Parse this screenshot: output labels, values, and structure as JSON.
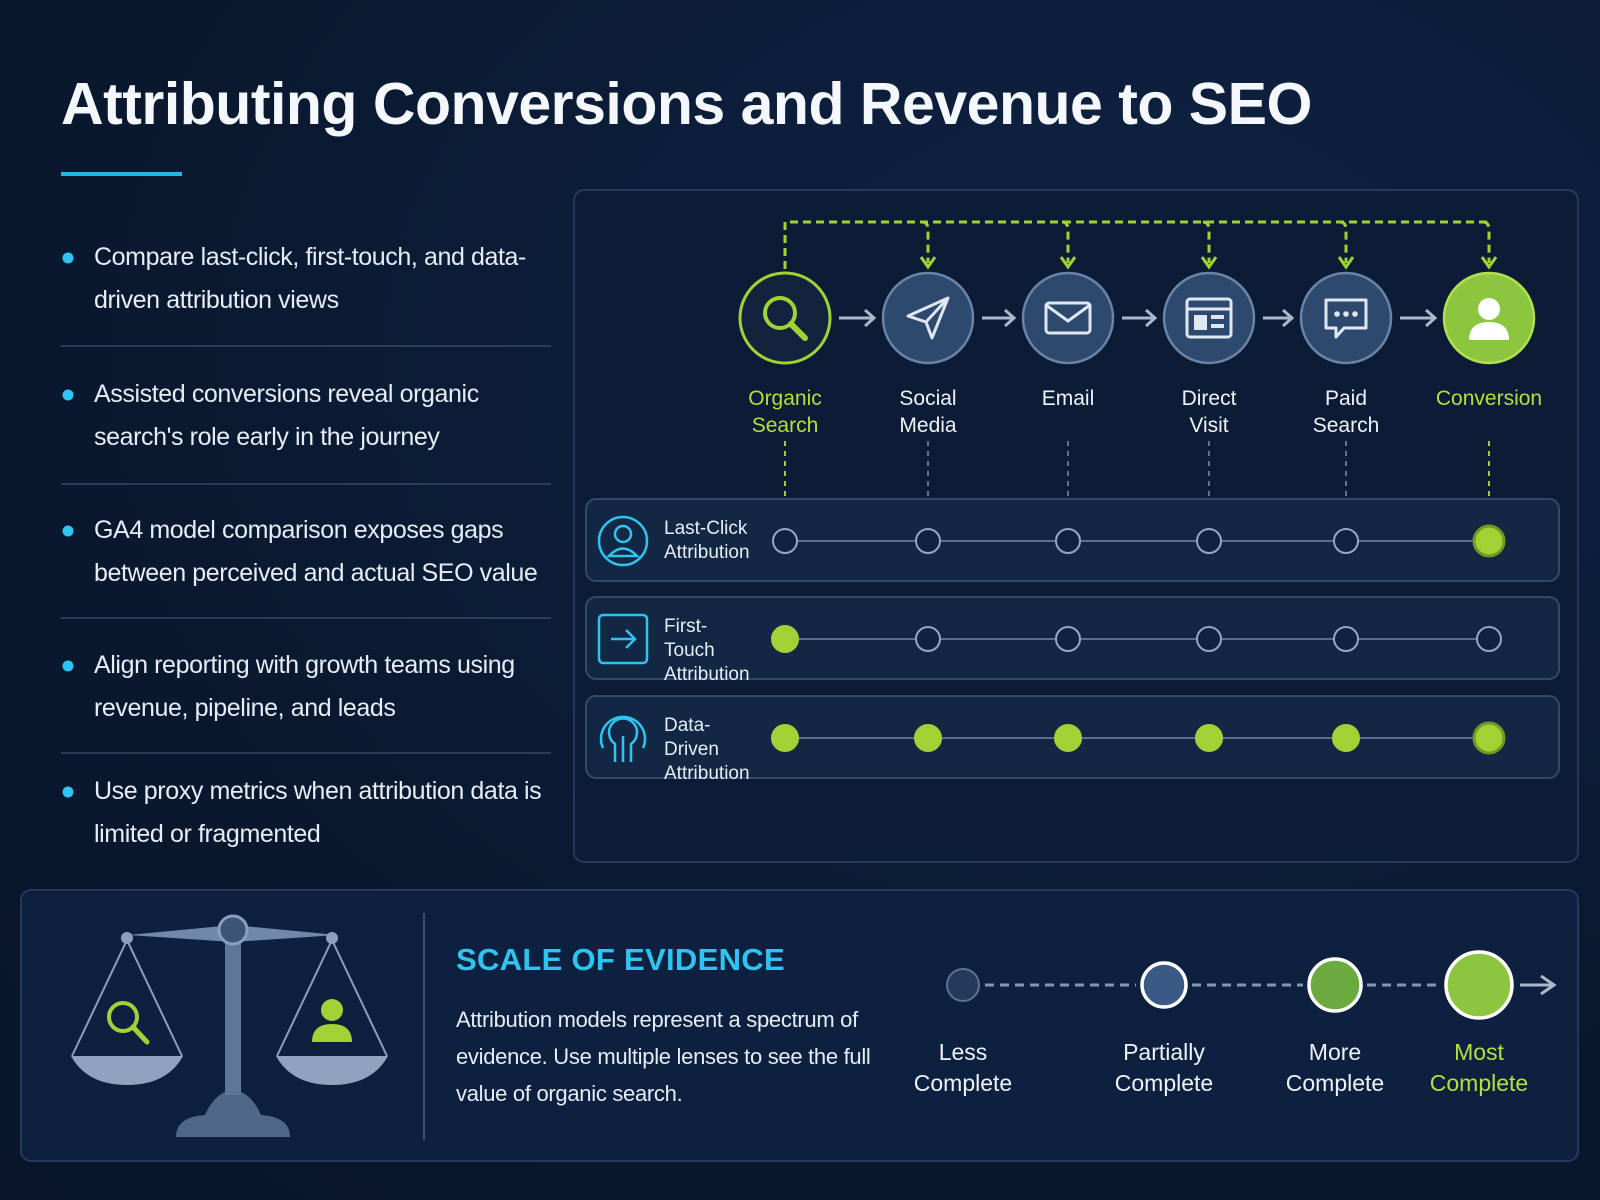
{
  "title": "Attributing Conversions and Revenue to SEO",
  "bullets": [
    "Compare last-click, first-touch, and data-driven attribution views",
    "Assisted conversions reveal organic search's role early in the journey",
    "GA4 model comparison exposes gaps between perceived and actual SEO value",
    "Align reporting with growth teams using revenue, pipeline, and leads",
    "Use proxy metrics when attribution data is limited or fragmented"
  ],
  "journey": {
    "steps": [
      "Organic Search",
      "Social Media",
      "Email",
      "Direct Visit",
      "Paid Search",
      "Conversion"
    ]
  },
  "models": [
    {
      "name": "Last-Click Attribution",
      "credited": [
        false,
        false,
        false,
        false,
        false,
        true
      ]
    },
    {
      "name": "First-Touch Attribution",
      "credited": [
        true,
        false,
        false,
        false,
        false,
        false
      ]
    },
    {
      "name": "Data-Driven Attribution",
      "credited": [
        true,
        true,
        true,
        true,
        true,
        true
      ]
    }
  ],
  "evidence": {
    "title": "SCALE OF EVIDENCE",
    "description": "Attribution models represent a spectrum of evidence. Use multiple lenses to see the full value of organic search.",
    "levels": [
      "Less Complete",
      "Partially Complete",
      "More Complete",
      "Most Complete"
    ]
  }
}
